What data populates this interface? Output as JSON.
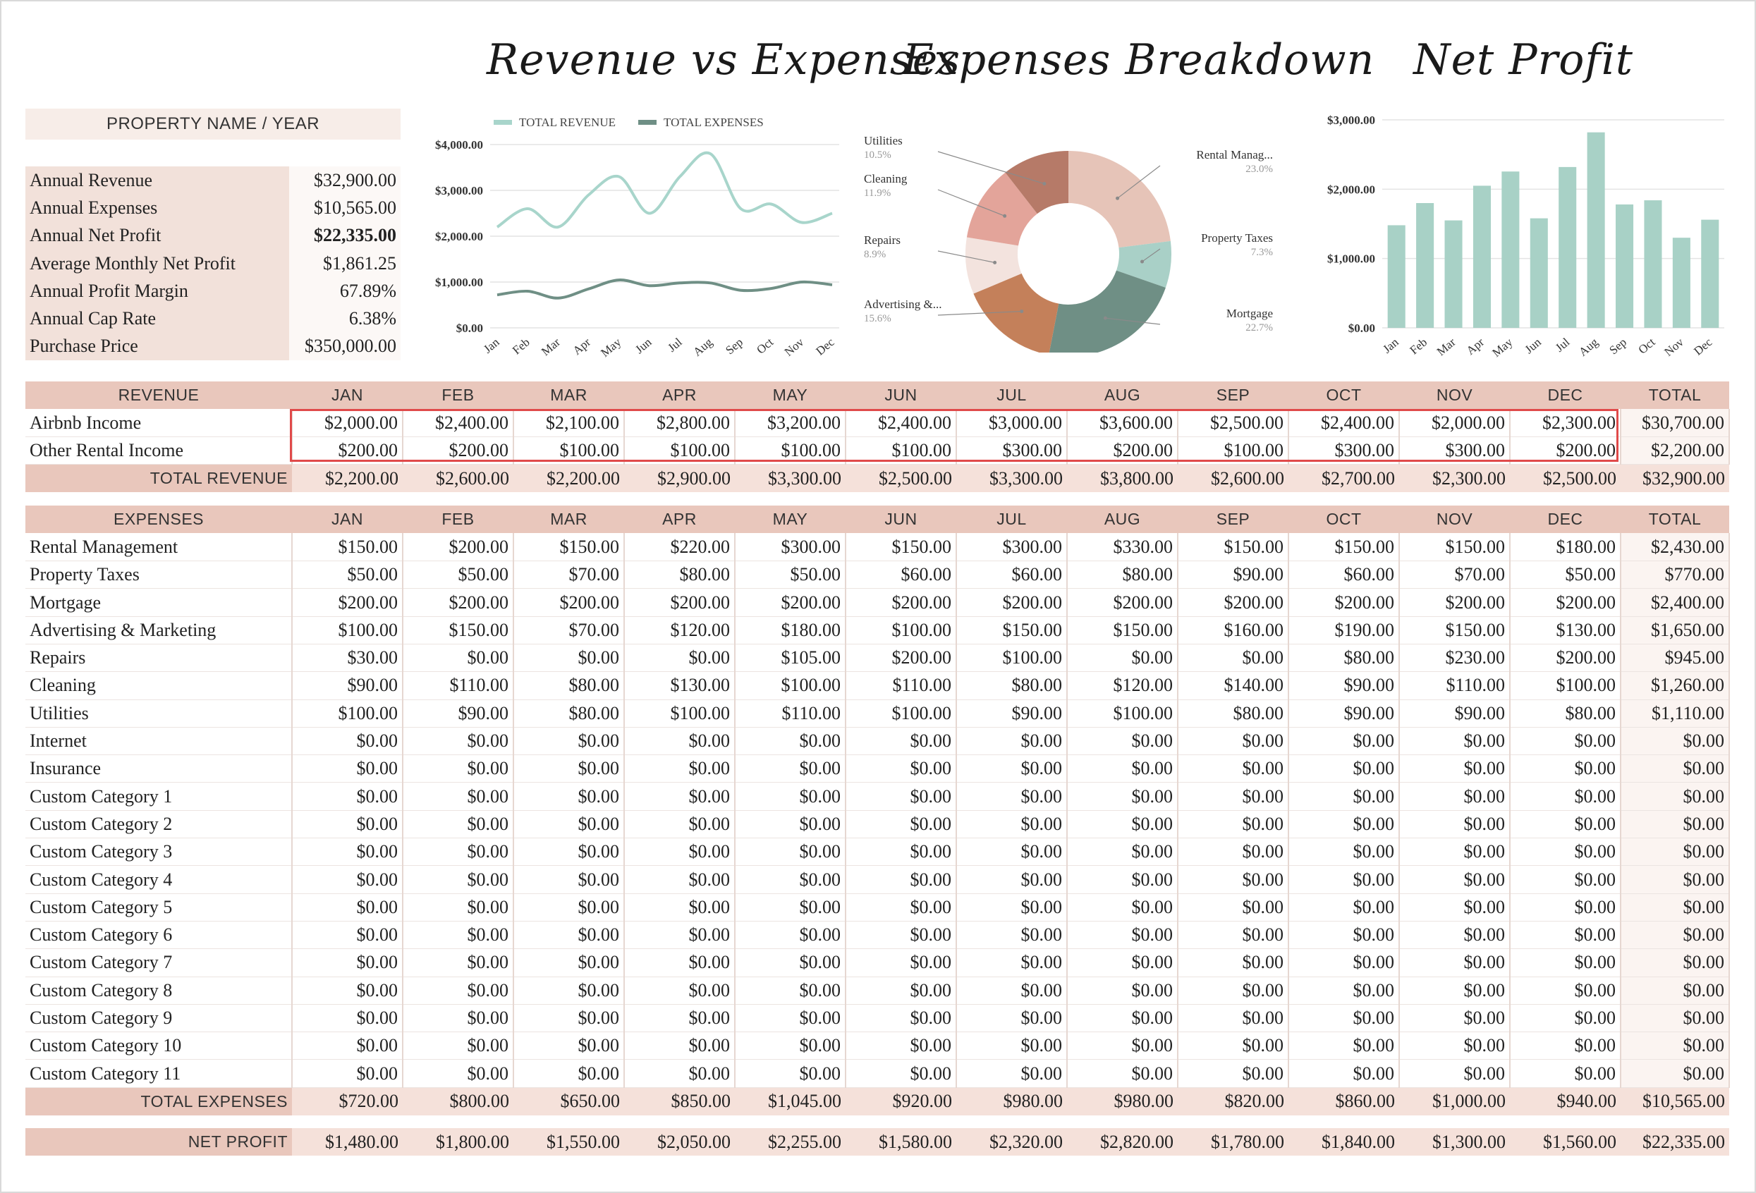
{
  "titles": {
    "revenue_vs_expenses": "Revenue vs Expenses",
    "expenses_breakdown": "Expenses Breakdown",
    "net_profit": "Net Profit"
  },
  "property_name": "PROPERTY NAME / YEAR",
  "summary": [
    {
      "label": "Annual Revenue",
      "value": "$32,900.00"
    },
    {
      "label": "Annual Expenses",
      "value": "$10,565.00"
    },
    {
      "label": "Annual Net Profit",
      "value": "$22,335.00"
    },
    {
      "label": "Average Monthly Net Profit",
      "value": "$1,861.25"
    },
    {
      "label": "Annual Profit Margin",
      "value": "67.89%"
    },
    {
      "label": "Annual Cap Rate",
      "value": "6.38%"
    },
    {
      "label": "Purchase Price",
      "value": "$350,000.00"
    }
  ],
  "colors": {
    "revenue": "#a8d5cb",
    "expenses": "#6f8f85",
    "bar": "#a8d1c6",
    "header": "#e9c7bc",
    "highlight": "#e04a4a"
  },
  "chart_data": [
    {
      "type": "line",
      "x": [
        "Jan",
        "Feb",
        "Mar",
        "Apr",
        "May",
        "Jun",
        "Jul",
        "Aug",
        "Sep",
        "Oct",
        "Nov",
        "Dec"
      ],
      "series": [
        {
          "name": "TOTAL REVENUE",
          "values": [
            2200,
            2600,
            2200,
            2900,
            3300,
            2500,
            3300,
            3800,
            2600,
            2700,
            2300,
            2500
          ]
        },
        {
          "name": "TOTAL EXPENSES",
          "values": [
            720,
            800,
            650,
            850,
            1045,
            920,
            980,
            980,
            820,
            860,
            1000,
            940
          ]
        }
      ],
      "yticks": [
        "$0.00",
        "$1,000.00",
        "$2,000.00",
        "$3,000.00",
        "$4,000.00"
      ],
      "ylim": [
        0,
        4000
      ],
      "legend": "top"
    },
    {
      "type": "pie",
      "slices": [
        {
          "label": "Rental Manag...",
          "pct": "23.0%",
          "value": 23.0,
          "color": "#e6c4b8"
        },
        {
          "label": "Property Taxes",
          "pct": "7.3%",
          "value": 7.3,
          "color": "#a9d0c7"
        },
        {
          "label": "Mortgage",
          "pct": "22.7%",
          "value": 22.7,
          "color": "#6f8f85"
        },
        {
          "label": "Advertising &...",
          "pct": "15.6%",
          "value": 15.6,
          "color": "#c4805a"
        },
        {
          "label": "Repairs",
          "pct": "8.9%",
          "value": 8.9,
          "color": "#f3e3de"
        },
        {
          "label": "Cleaning",
          "pct": "11.9%",
          "value": 11.9,
          "color": "#e3a49a"
        },
        {
          "label": "Utilities",
          "pct": "10.5%",
          "value": 10.5,
          "color": "#b67a68"
        }
      ]
    },
    {
      "type": "bar",
      "categories": [
        "Jan",
        "Feb",
        "Mar",
        "Apr",
        "May",
        "Jun",
        "Jul",
        "Aug",
        "Sep",
        "Oct",
        "Nov",
        "Dec"
      ],
      "values": [
        1480,
        1800,
        1550,
        2050,
        2255,
        1580,
        2320,
        2820,
        1780,
        1840,
        1300,
        1560
      ],
      "yticks": [
        "$0.00",
        "$1,000.00",
        "$2,000.00",
        "$3,000.00"
      ],
      "ylim": [
        0,
        3000
      ]
    }
  ],
  "months": [
    "JAN",
    "FEB",
    "MAR",
    "APR",
    "MAY",
    "JUN",
    "JUL",
    "AUG",
    "SEP",
    "OCT",
    "NOV",
    "DEC"
  ],
  "revenue_table": {
    "header": "REVENUE",
    "total_header": "TOTAL",
    "rows": [
      {
        "label": "Airbnb Income",
        "values": [
          "$2,000.00",
          "$2,400.00",
          "$2,100.00",
          "$2,800.00",
          "$3,200.00",
          "$2,400.00",
          "$3,000.00",
          "$3,600.00",
          "$2,500.00",
          "$2,400.00",
          "$2,000.00",
          "$2,300.00"
        ],
        "total": "$30,700.00"
      },
      {
        "label": "Other Rental Income",
        "values": [
          "$200.00",
          "$200.00",
          "$100.00",
          "$100.00",
          "$100.00",
          "$100.00",
          "$300.00",
          "$200.00",
          "$100.00",
          "$300.00",
          "$300.00",
          "$200.00"
        ],
        "total": "$2,200.00"
      }
    ],
    "total_label": "TOTAL REVENUE",
    "totals": [
      "$2,200.00",
      "$2,600.00",
      "$2,200.00",
      "$2,900.00",
      "$3,300.00",
      "$2,500.00",
      "$3,300.00",
      "$3,800.00",
      "$2,600.00",
      "$2,700.00",
      "$2,300.00",
      "$2,500.00"
    ],
    "grand_total": "$32,900.00"
  },
  "expenses_table": {
    "header": "EXPENSES",
    "total_header": "TOTAL",
    "rows": [
      {
        "label": "Rental Management",
        "values": [
          "$150.00",
          "$200.00",
          "$150.00",
          "$220.00",
          "$300.00",
          "$150.00",
          "$300.00",
          "$330.00",
          "$150.00",
          "$150.00",
          "$150.00",
          "$180.00"
        ],
        "total": "$2,430.00"
      },
      {
        "label": "Property Taxes",
        "values": [
          "$50.00",
          "$50.00",
          "$70.00",
          "$80.00",
          "$50.00",
          "$60.00",
          "$60.00",
          "$80.00",
          "$90.00",
          "$60.00",
          "$70.00",
          "$50.00"
        ],
        "total": "$770.00"
      },
      {
        "label": "Mortgage",
        "values": [
          "$200.00",
          "$200.00",
          "$200.00",
          "$200.00",
          "$200.00",
          "$200.00",
          "$200.00",
          "$200.00",
          "$200.00",
          "$200.00",
          "$200.00",
          "$200.00"
        ],
        "total": "$2,400.00"
      },
      {
        "label": "Advertising & Marketing",
        "values": [
          "$100.00",
          "$150.00",
          "$70.00",
          "$120.00",
          "$180.00",
          "$100.00",
          "$150.00",
          "$150.00",
          "$160.00",
          "$190.00",
          "$150.00",
          "$130.00"
        ],
        "total": "$1,650.00"
      },
      {
        "label": "Repairs",
        "values": [
          "$30.00",
          "$0.00",
          "$0.00",
          "$0.00",
          "$105.00",
          "$200.00",
          "$100.00",
          "$0.00",
          "$0.00",
          "$80.00",
          "$230.00",
          "$200.00"
        ],
        "total": "$945.00"
      },
      {
        "label": "Cleaning",
        "values": [
          "$90.00",
          "$110.00",
          "$80.00",
          "$130.00",
          "$100.00",
          "$110.00",
          "$80.00",
          "$120.00",
          "$140.00",
          "$90.00",
          "$110.00",
          "$100.00"
        ],
        "total": "$1,260.00"
      },
      {
        "label": "Utilities",
        "values": [
          "$100.00",
          "$90.00",
          "$80.00",
          "$100.00",
          "$110.00",
          "$100.00",
          "$90.00",
          "$100.00",
          "$80.00",
          "$90.00",
          "$90.00",
          "$80.00"
        ],
        "total": "$1,110.00"
      },
      {
        "label": "Internet",
        "values": [
          "$0.00",
          "$0.00",
          "$0.00",
          "$0.00",
          "$0.00",
          "$0.00",
          "$0.00",
          "$0.00",
          "$0.00",
          "$0.00",
          "$0.00",
          "$0.00"
        ],
        "total": "$0.00"
      },
      {
        "label": "Insurance",
        "values": [
          "$0.00",
          "$0.00",
          "$0.00",
          "$0.00",
          "$0.00",
          "$0.00",
          "$0.00",
          "$0.00",
          "$0.00",
          "$0.00",
          "$0.00",
          "$0.00"
        ],
        "total": "$0.00"
      },
      {
        "label": "Custom Category 1",
        "values": [
          "$0.00",
          "$0.00",
          "$0.00",
          "$0.00",
          "$0.00",
          "$0.00",
          "$0.00",
          "$0.00",
          "$0.00",
          "$0.00",
          "$0.00",
          "$0.00"
        ],
        "total": "$0.00"
      },
      {
        "label": "Custom Category 2",
        "values": [
          "$0.00",
          "$0.00",
          "$0.00",
          "$0.00",
          "$0.00",
          "$0.00",
          "$0.00",
          "$0.00",
          "$0.00",
          "$0.00",
          "$0.00",
          "$0.00"
        ],
        "total": "$0.00"
      },
      {
        "label": "Custom Category 3",
        "values": [
          "$0.00",
          "$0.00",
          "$0.00",
          "$0.00",
          "$0.00",
          "$0.00",
          "$0.00",
          "$0.00",
          "$0.00",
          "$0.00",
          "$0.00",
          "$0.00"
        ],
        "total": "$0.00"
      },
      {
        "label": "Custom Category 4",
        "values": [
          "$0.00",
          "$0.00",
          "$0.00",
          "$0.00",
          "$0.00",
          "$0.00",
          "$0.00",
          "$0.00",
          "$0.00",
          "$0.00",
          "$0.00",
          "$0.00"
        ],
        "total": "$0.00"
      },
      {
        "label": "Custom Category 5",
        "values": [
          "$0.00",
          "$0.00",
          "$0.00",
          "$0.00",
          "$0.00",
          "$0.00",
          "$0.00",
          "$0.00",
          "$0.00",
          "$0.00",
          "$0.00",
          "$0.00"
        ],
        "total": "$0.00"
      },
      {
        "label": "Custom Category 6",
        "values": [
          "$0.00",
          "$0.00",
          "$0.00",
          "$0.00",
          "$0.00",
          "$0.00",
          "$0.00",
          "$0.00",
          "$0.00",
          "$0.00",
          "$0.00",
          "$0.00"
        ],
        "total": "$0.00"
      },
      {
        "label": "Custom Category 7",
        "values": [
          "$0.00",
          "$0.00",
          "$0.00",
          "$0.00",
          "$0.00",
          "$0.00",
          "$0.00",
          "$0.00",
          "$0.00",
          "$0.00",
          "$0.00",
          "$0.00"
        ],
        "total": "$0.00"
      },
      {
        "label": "Custom Category 8",
        "values": [
          "$0.00",
          "$0.00",
          "$0.00",
          "$0.00",
          "$0.00",
          "$0.00",
          "$0.00",
          "$0.00",
          "$0.00",
          "$0.00",
          "$0.00",
          "$0.00"
        ],
        "total": "$0.00"
      },
      {
        "label": "Custom Category 9",
        "values": [
          "$0.00",
          "$0.00",
          "$0.00",
          "$0.00",
          "$0.00",
          "$0.00",
          "$0.00",
          "$0.00",
          "$0.00",
          "$0.00",
          "$0.00",
          "$0.00"
        ],
        "total": "$0.00"
      },
      {
        "label": "Custom Category 10",
        "values": [
          "$0.00",
          "$0.00",
          "$0.00",
          "$0.00",
          "$0.00",
          "$0.00",
          "$0.00",
          "$0.00",
          "$0.00",
          "$0.00",
          "$0.00",
          "$0.00"
        ],
        "total": "$0.00"
      },
      {
        "label": "Custom Category 11",
        "values": [
          "$0.00",
          "$0.00",
          "$0.00",
          "$0.00",
          "$0.00",
          "$0.00",
          "$0.00",
          "$0.00",
          "$0.00",
          "$0.00",
          "$0.00",
          "$0.00"
        ],
        "total": "$0.00"
      }
    ],
    "total_label": "TOTAL EXPENSES",
    "totals": [
      "$720.00",
      "$800.00",
      "$650.00",
      "$850.00",
      "$1,045.00",
      "$920.00",
      "$980.00",
      "$980.00",
      "$820.00",
      "$860.00",
      "$1,000.00",
      "$940.00"
    ],
    "grand_total": "$10,565.00"
  },
  "net_profit_row": {
    "label": "NET PROFIT",
    "values": [
      "$1,480.00",
      "$1,800.00",
      "$1,550.00",
      "$2,050.00",
      "$2,255.00",
      "$1,580.00",
      "$2,320.00",
      "$2,820.00",
      "$1,780.00",
      "$1,840.00",
      "$1,300.00",
      "$1,560.00"
    ],
    "total": "$22,335.00"
  }
}
